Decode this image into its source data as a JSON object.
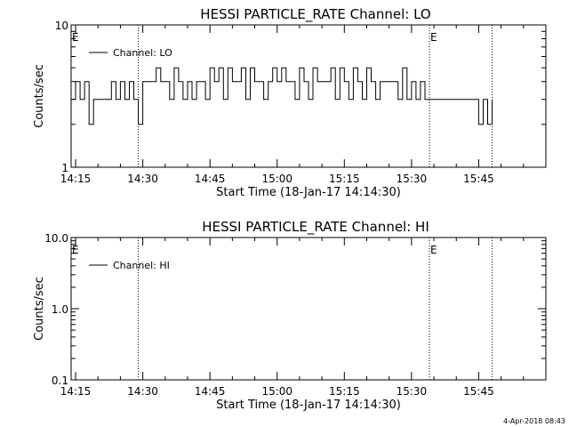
{
  "footer": {
    "timestamp": "4-Apr-2018 08:43"
  },
  "chart_data": [
    {
      "type": "line",
      "title": "HESSI PARTICLE_RATE Channel: LO",
      "xlabel": "Start Time (18-Jan-17 14:14:30)",
      "ylabel": "Counts/sec",
      "y_scale": "log",
      "xlim": [
        "14:14",
        "16:00"
      ],
      "ylim": [
        1,
        10
      ],
      "x_ticks": [
        "14:15",
        "14:30",
        "14:45",
        "15:00",
        "15:15",
        "15:30",
        "15:45"
      ],
      "y_ticks": [
        "1",
        "10"
      ],
      "legend": {
        "placement": "top-left",
        "entries": [
          "Channel: LO"
        ]
      },
      "markers": [
        {
          "time": "14:14",
          "label": "E"
        },
        {
          "time": "14:29"
        },
        {
          "time": "15:34",
          "label": "E"
        },
        {
          "time": "15:48"
        }
      ],
      "series": [
        {
          "name": "Channel: LO",
          "x": [
            "14:14",
            "14:15",
            "14:16",
            "14:17",
            "14:18",
            "14:19",
            "14:20",
            "14:21",
            "14:22",
            "14:23",
            "14:24",
            "14:25",
            "14:26",
            "14:27",
            "14:28",
            "14:29",
            "14:30",
            "14:31",
            "14:32",
            "14:33",
            "14:34",
            "14:35",
            "14:36",
            "14:37",
            "14:38",
            "14:39",
            "14:40",
            "14:41",
            "14:42",
            "14:43",
            "14:44",
            "14:45",
            "14:46",
            "14:47",
            "14:48",
            "14:49",
            "14:50",
            "14:51",
            "14:52",
            "14:53",
            "14:54",
            "14:55",
            "14:56",
            "14:57",
            "14:58",
            "14:59",
            "15:00",
            "15:01",
            "15:02",
            "15:03",
            "15:04",
            "15:05",
            "15:06",
            "15:07",
            "15:08",
            "15:09",
            "15:10",
            "15:11",
            "15:12",
            "15:13",
            "15:14",
            "15:15",
            "15:16",
            "15:17",
            "15:18",
            "15:19",
            "15:20",
            "15:21",
            "15:22",
            "15:23",
            "15:24",
            "15:25",
            "15:26",
            "15:27",
            "15:28",
            "15:29",
            "15:30",
            "15:31",
            "15:32",
            "15:33",
            "15:34",
            "15:35",
            "15:36",
            "15:37",
            "15:38",
            "15:39",
            "15:40",
            "15:41",
            "15:42",
            "15:43",
            "15:44",
            "15:45",
            "15:46",
            "15:47",
            "15:48"
          ],
          "y": [
            3,
            4,
            3,
            4,
            2,
            3,
            3,
            3,
            3,
            4,
            3,
            4,
            3,
            4,
            3,
            2,
            4,
            4,
            4,
            5,
            4,
            4,
            3,
            5,
            4,
            3,
            4,
            3,
            4,
            4,
            3,
            5,
            4,
            5,
            3,
            5,
            4,
            4,
            5,
            3,
            5,
            4,
            4,
            3,
            4,
            5,
            4,
            5,
            4,
            4,
            3,
            5,
            4,
            3,
            5,
            4,
            4,
            4,
            5,
            3,
            5,
            4,
            3,
            5,
            4,
            3,
            5,
            4,
            3,
            4,
            4,
            4,
            4,
            3,
            5,
            3,
            4,
            3,
            4,
            3,
            3,
            3,
            3,
            3,
            3,
            3,
            3,
            3,
            3,
            3,
            3,
            2,
            3,
            2,
            3
          ]
        }
      ]
    },
    {
      "type": "line",
      "title": "HESSI PARTICLE_RATE Channel: HI",
      "xlabel": "Start Time (18-Jan-17 14:14:30)",
      "ylabel": "Counts/sec",
      "y_scale": "log",
      "xlim": [
        "14:14",
        "16:00"
      ],
      "ylim": [
        0.1,
        10
      ],
      "x_ticks": [
        "14:15",
        "14:30",
        "14:45",
        "15:00",
        "15:15",
        "15:30",
        "15:45"
      ],
      "y_ticks": [
        "0.1",
        "1.0",
        "10.0"
      ],
      "legend": {
        "placement": "top-left",
        "entries": [
          "Channel: HI"
        ]
      },
      "markers": [
        {
          "time": "14:14",
          "label": "E"
        },
        {
          "time": "14:29"
        },
        {
          "time": "15:34",
          "label": "E"
        },
        {
          "time": "15:48"
        }
      ],
      "series": [
        {
          "name": "Channel: HI",
          "x": [],
          "y": []
        }
      ]
    }
  ]
}
